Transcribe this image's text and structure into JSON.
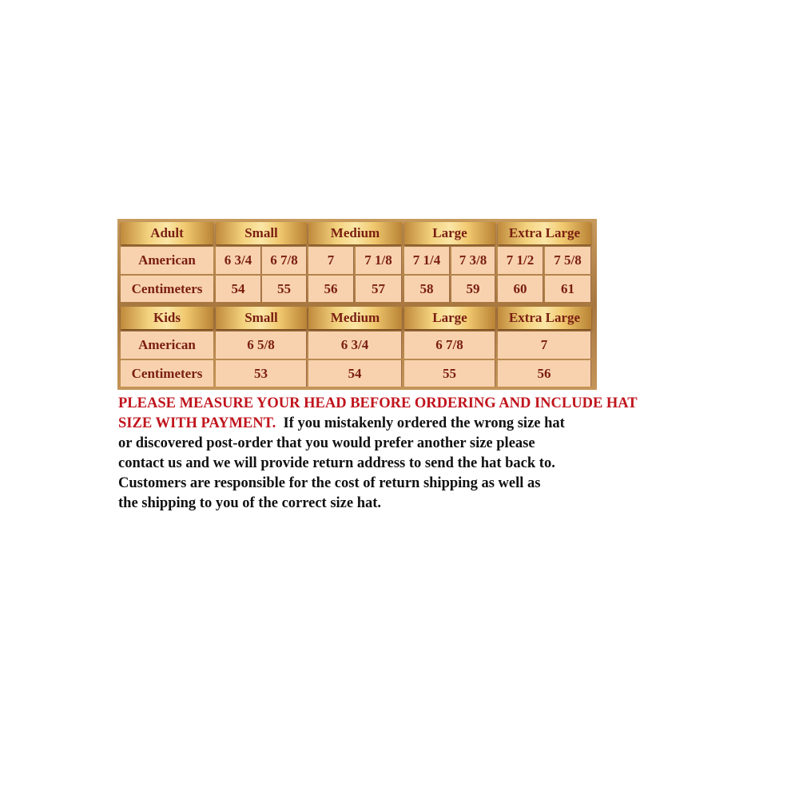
{
  "adult": {
    "header": [
      "Adult",
      "Small",
      "Medium",
      "Large",
      "Extra Large"
    ],
    "rows": [
      {
        "label": "American",
        "values": [
          "6 3/4",
          "6 7/8",
          "7",
          "7 1/8",
          "7 1/4",
          "7 3/8",
          "7 1/2",
          "7 5/8"
        ]
      },
      {
        "label": "Centimeters",
        "values": [
          "54",
          "55",
          "56",
          "57",
          "58",
          "59",
          "60",
          "61"
        ]
      }
    ]
  },
  "kids": {
    "header": [
      "Kids",
      "Small",
      "Medium",
      "Large",
      "Extra Large"
    ],
    "rows": [
      {
        "label": "American",
        "values": [
          "6 5/8",
          "6 3/4",
          "6 7/8",
          "7"
        ]
      },
      {
        "label": "Centimeters",
        "values": [
          "53",
          "54",
          "55",
          "56"
        ]
      }
    ]
  },
  "notice": {
    "line1_red": "PLEASE MEASURE YOUR HEAD BEFORE ORDERING AND INCLUDE HAT",
    "line2_red": "SIZE WITH PAYMENT.",
    "line2_rest": "If you mistakenly ordered the wrong size hat",
    "line3": "or discovered post-order that you would prefer another size please",
    "line4": "contact us and we will provide return address to send the hat back to.",
    "line5": "Customers are responsible for the cost of return shipping as well as",
    "line6": "the shipping to you of the correct size hat."
  },
  "colors": {
    "header_text": "#7a1e12",
    "cell_bg": "#f8d2ae",
    "notice_red": "#c0141c"
  }
}
